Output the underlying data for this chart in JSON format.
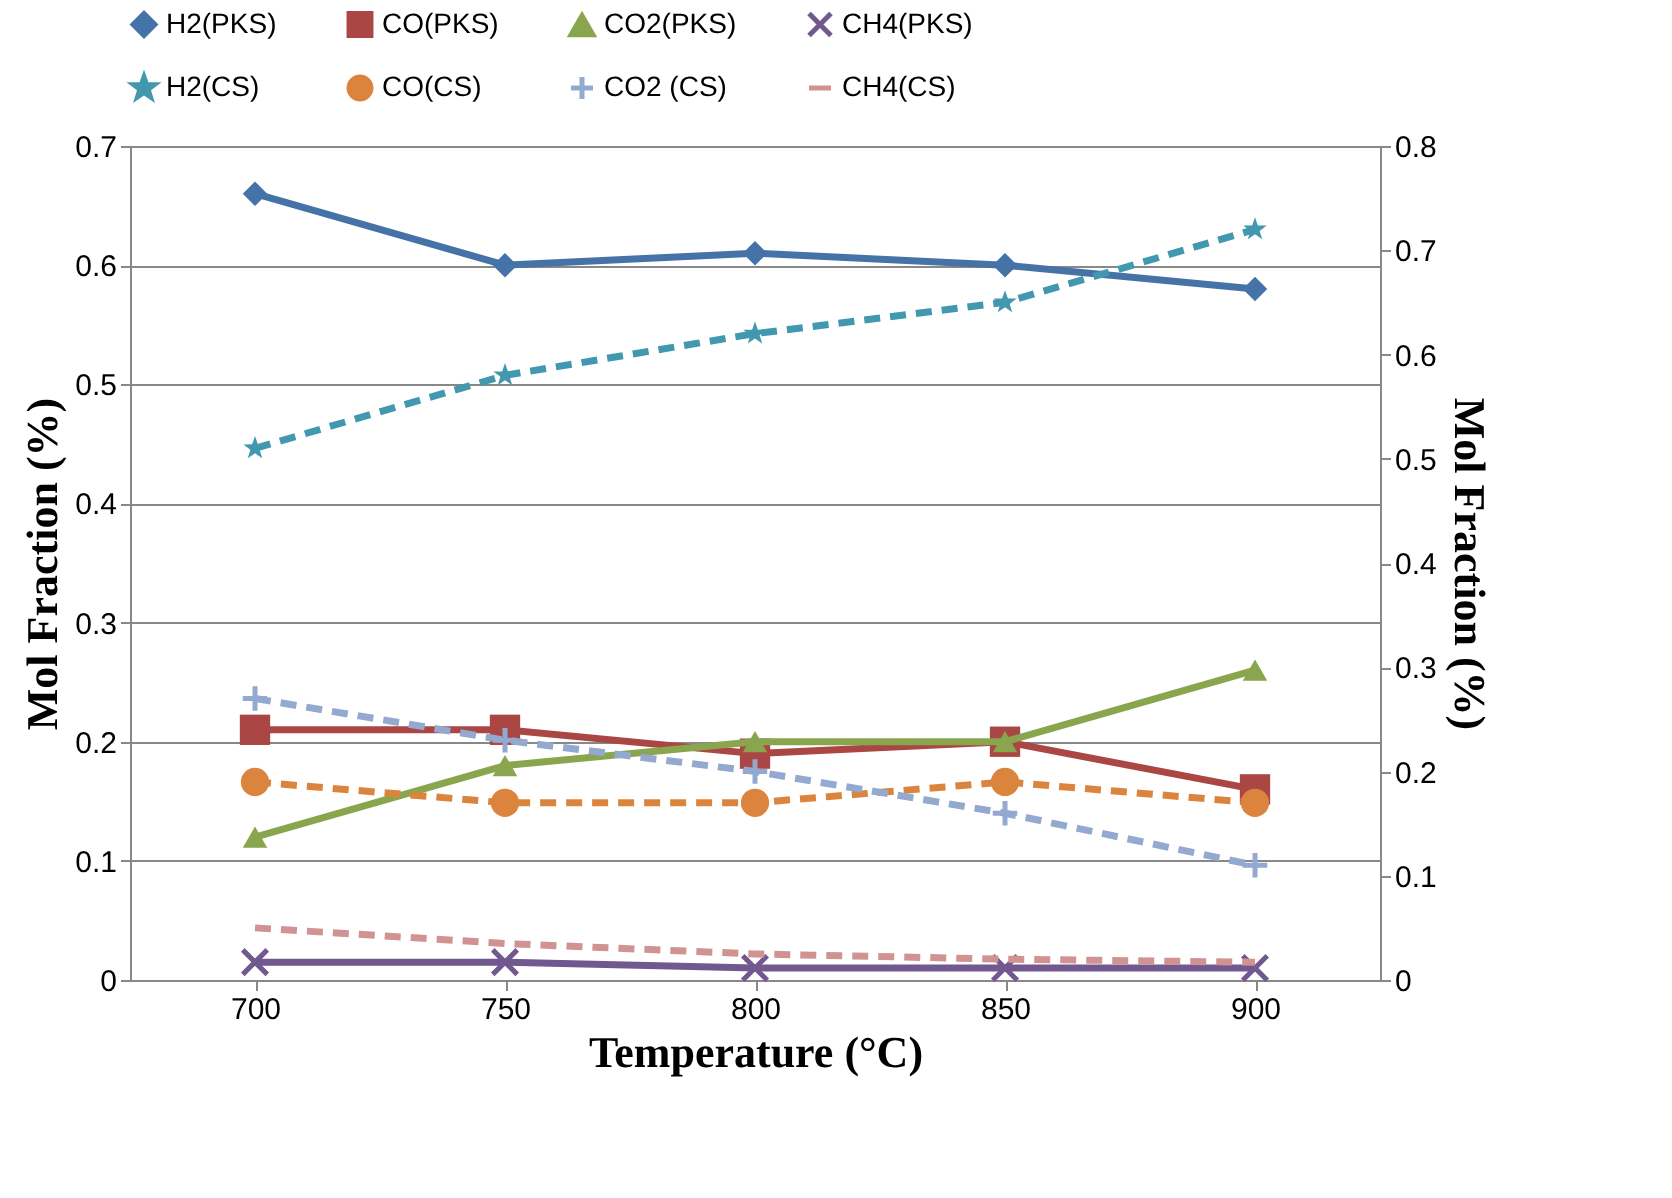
{
  "chart_data": {
    "type": "line",
    "xlabel": "Temperature (°C)",
    "ylabel": "Mol Fraction (%)",
    "y2label": "Mol Fraction (%)",
    "categories": [
      "700",
      "750",
      "800",
      "850",
      "900"
    ],
    "ylim": [
      0,
      0.7
    ],
    "yticks": [
      0,
      0.1,
      0.2,
      0.3,
      0.4,
      0.5,
      0.6,
      0.7
    ],
    "y2lim": [
      0,
      0.8
    ],
    "y2ticks": [
      0,
      0.1,
      0.2,
      0.3,
      0.4,
      0.5,
      0.6,
      0.7,
      0.8
    ],
    "grid": "y",
    "legend": "top",
    "series": [
      {
        "name": "H2(PKS)",
        "color": "#4572a7",
        "marker": "diamond",
        "line_style": "solid",
        "values": [
          0.66,
          0.6,
          0.61,
          0.6,
          0.58
        ]
      },
      {
        "name": "CO(PKS)",
        "color": "#aa4643",
        "marker": "square",
        "line_style": "solid",
        "values": [
          0.21,
          0.21,
          0.19,
          0.2,
          0.16
        ]
      },
      {
        "name": "CO2(PKS)",
        "color": "#89a54e",
        "marker": "triangle",
        "line_style": "solid",
        "values": [
          0.12,
          0.18,
          0.2,
          0.2,
          0.26
        ]
      },
      {
        "name": "CH4(PKS)",
        "color": "#71588f",
        "marker": "x",
        "line_style": "solid",
        "values": [
          0.015,
          0.015,
          0.01,
          0.01,
          0.01
        ]
      },
      {
        "name": "H2(CS)",
        "color": "#4198af",
        "marker": "star",
        "line_style": "dashed",
        "axis": "y2",
        "values": [
          0.51,
          0.58,
          0.62,
          0.65,
          0.72
        ]
      },
      {
        "name": "CO(CS)",
        "color": "#db843d",
        "marker": "circle",
        "line_style": "dashed",
        "axis": "y2",
        "values": [
          0.19,
          0.17,
          0.17,
          0.19,
          0.17
        ]
      },
      {
        "name": "CO2 (CS)",
        "color": "#93a9cf",
        "marker": "cross",
        "line_style": "dashed",
        "axis": "y2",
        "values": [
          0.27,
          0.23,
          0.2,
          0.16,
          0.11
        ]
      },
      {
        "name": "CH4(CS)",
        "color": "#d19392",
        "marker": "none",
        "line_style": "dashed",
        "axis": "y2",
        "values": [
          0.05,
          0.035,
          0.025,
          0.02,
          0.017
        ]
      }
    ]
  }
}
